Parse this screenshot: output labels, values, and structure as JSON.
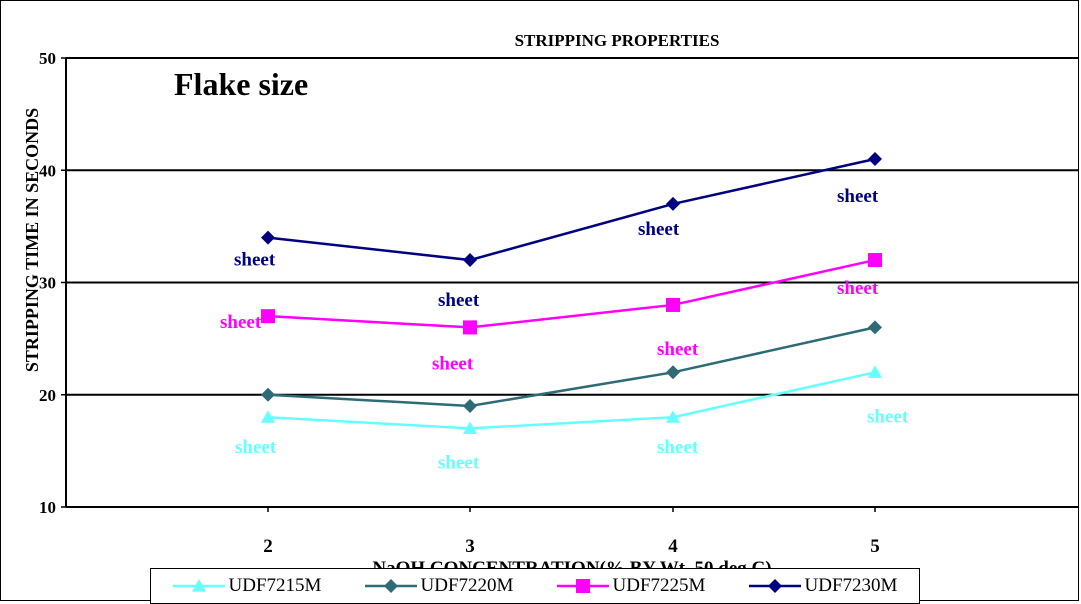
{
  "chart_data": {
    "type": "line",
    "title": "STRIPPING PROPERTIES",
    "annotation": "Flake size",
    "xlabel": "NaOH CONCENTRATION(% BY Wt. 50 deg C)",
    "ylabel": "STRIPPING TIME  IN  SECONDS",
    "categories": [
      "2",
      "3",
      "4",
      "5"
    ],
    "ylim": [
      10,
      50
    ],
    "yticks": [
      "10",
      "20",
      "30",
      "40",
      "50"
    ],
    "grid": true,
    "legend_position": "bottom",
    "point_label": "sheet",
    "series": [
      {
        "name": "UDF7215M",
        "values": [
          18,
          17,
          18,
          22
        ],
        "color": "#66FFFF",
        "marker": "triangle"
      },
      {
        "name": "UDF7220M",
        "values": [
          20,
          19,
          22,
          26
        ],
        "color": "#2E6B75",
        "marker": "diamond"
      },
      {
        "name": "UDF7225M",
        "values": [
          27,
          26,
          28,
          32
        ],
        "color": "#FF00FF",
        "marker": "square"
      },
      {
        "name": "UDF7230M",
        "values": [
          34,
          32,
          37,
          41
        ],
        "color": "#000080",
        "marker": "diamond"
      }
    ]
  }
}
